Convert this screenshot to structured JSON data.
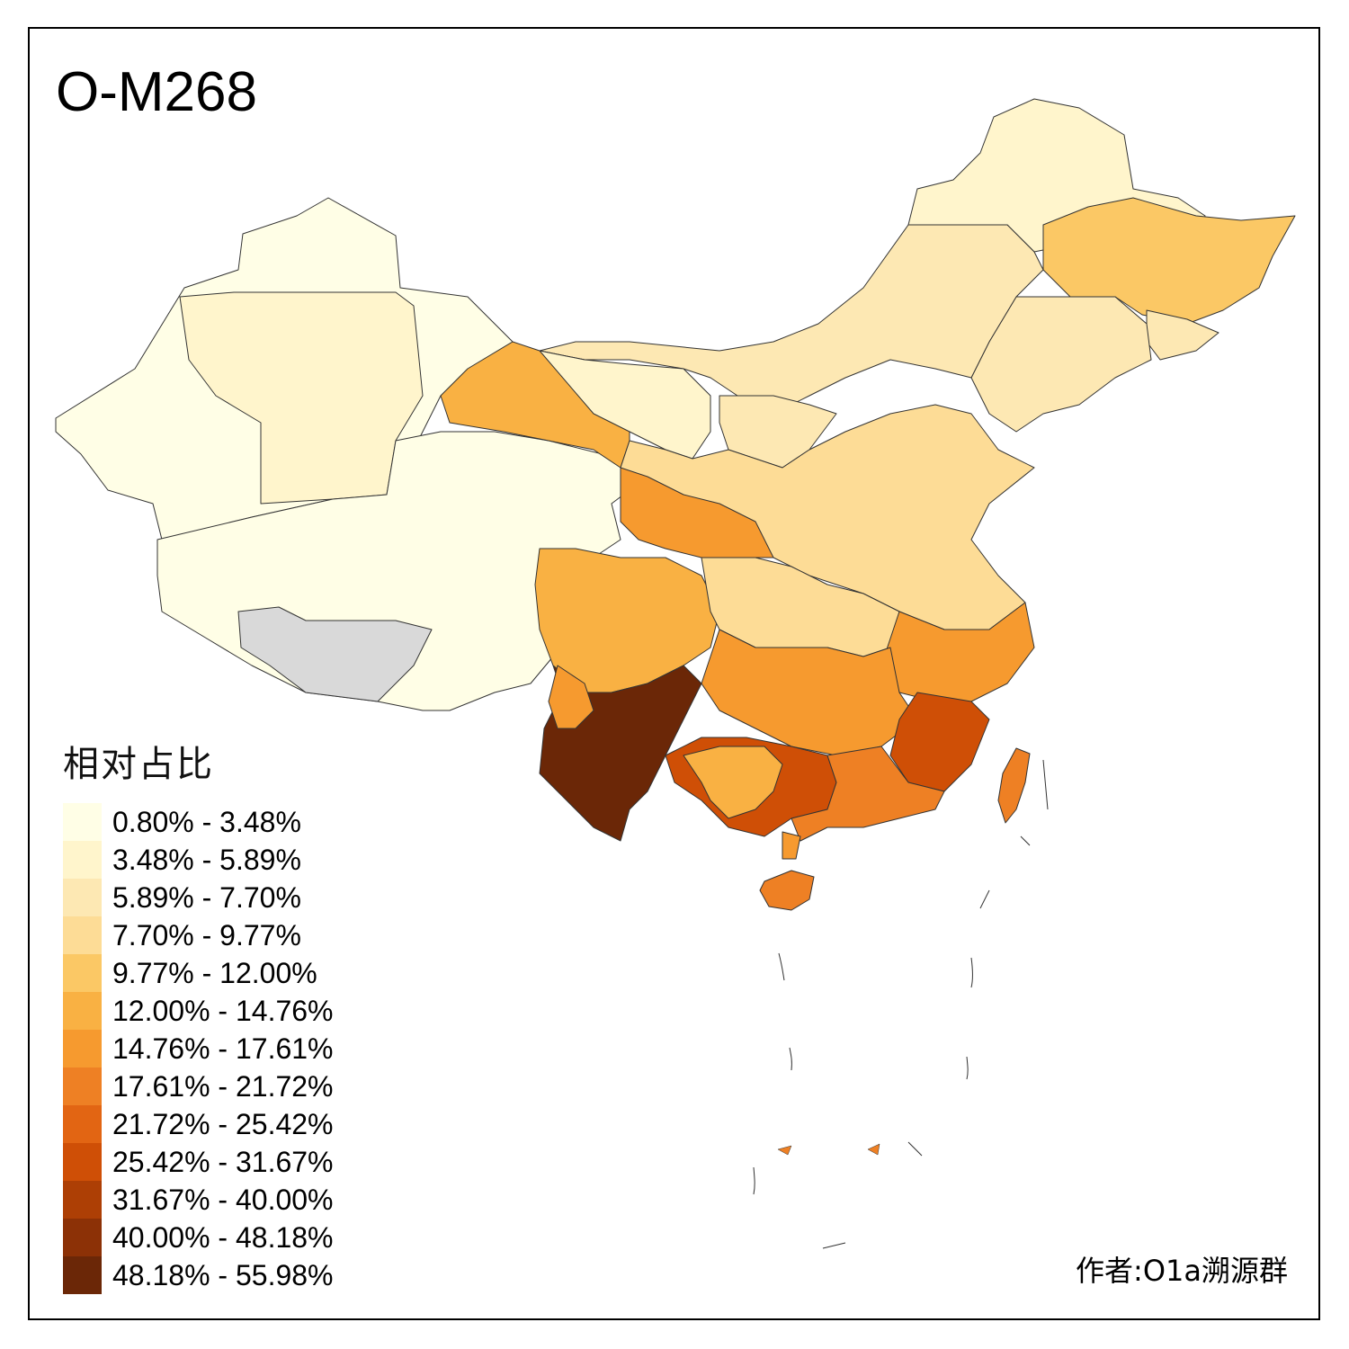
{
  "title": "O-M268",
  "legend": {
    "title": "相对占比",
    "items": [
      {
        "label": "0.80% - 3.48%",
        "color": "#fffee6"
      },
      {
        "label": "3.48% - 5.89%",
        "color": "#fff5cc"
      },
      {
        "label": "5.89% - 7.70%",
        "color": "#fde8b3"
      },
      {
        "label": "7.70% - 9.77%",
        "color": "#fddc96"
      },
      {
        "label": "9.77% - 12.00%",
        "color": "#fbc865"
      },
      {
        "label": "12.00% - 14.76%",
        "color": "#f9b143"
      },
      {
        "label": "14.76% - 17.61%",
        "color": "#f69a2f"
      },
      {
        "label": "17.61% - 21.72%",
        "color": "#ee8024"
      },
      {
        "label": "21.72% - 25.42%",
        "color": "#e26513"
      },
      {
        "label": "25.42% - 31.67%",
        "color": "#cf4f06"
      },
      {
        "label": "31.67% - 40.00%",
        "color": "#ad3f05"
      },
      {
        "label": "40.00% - 48.18%",
        "color": "#8c3106"
      },
      {
        "label": "48.18% - 55.98%",
        "color": "#6b2707"
      }
    ]
  },
  "no_data_color": "#d9d9d9",
  "credit": "作者:O1a溯源群",
  "regions": [
    {
      "name": "xinjiang",
      "class": 0
    },
    {
      "name": "xinjiang-east",
      "class": 1
    },
    {
      "name": "tibet",
      "class": 0
    },
    {
      "name": "qinghai-tibet-gap",
      "class": -1
    },
    {
      "name": "heilongjiang",
      "class": 1
    },
    {
      "name": "jilin",
      "class": 4
    },
    {
      "name": "liaoning",
      "class": 2
    },
    {
      "name": "inner-mongolia",
      "class": 2
    },
    {
      "name": "gansu",
      "class": 2
    },
    {
      "name": "ningxia",
      "class": 5
    },
    {
      "name": "shanxi-beijing",
      "class": 1
    },
    {
      "name": "north-plain",
      "class": 2
    },
    {
      "name": "shaanxi",
      "class": 3
    },
    {
      "name": "sichuan",
      "class": 6
    },
    {
      "name": "chongqing-hubei",
      "class": 5
    },
    {
      "name": "jiangnan",
      "class": 3
    },
    {
      "name": "hunan-jiangxi",
      "class": 6
    },
    {
      "name": "guangdong",
      "class": 6
    },
    {
      "name": "guangxi",
      "class": 9
    },
    {
      "name": "guangxi-core",
      "class": 12
    },
    {
      "name": "yunnan",
      "class": 6
    },
    {
      "name": "yunnan-west",
      "class": 9
    },
    {
      "name": "fujian",
      "class": 5
    },
    {
      "name": "hainan",
      "class": 7
    },
    {
      "name": "taiwan",
      "class": 6
    },
    {
      "name": "jilin-east",
      "class": 7
    },
    {
      "name": "leizhou",
      "class": 7
    }
  ]
}
